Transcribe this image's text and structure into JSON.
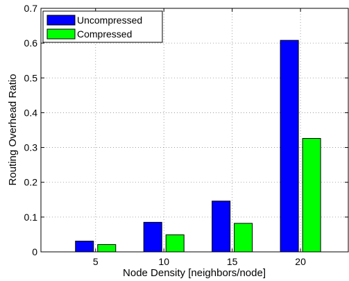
{
  "chart_data": {
    "type": "bar",
    "title": "",
    "xlabel": "Node Density [neighbors/node]",
    "ylabel": "Routing Overhead Ratio",
    "categories": [
      "5",
      "10",
      "15",
      "20"
    ],
    "ylim": [
      0,
      0.7
    ],
    "yticks": [
      0,
      0.1,
      0.2,
      0.3,
      0.4,
      0.5,
      0.6,
      0.7
    ],
    "ytick_labels": [
      "0",
      "0.1",
      "0.2",
      "0.3",
      "0.4",
      "0.5",
      "0.6",
      "0.7"
    ],
    "grid": true,
    "grid_style": "dotted",
    "legend_position": "top-left",
    "series": [
      {
        "name": "Uncompressed",
        "color": "#0000ff",
        "values": [
          0.031,
          0.085,
          0.146,
          0.608
        ]
      },
      {
        "name": "Compressed",
        "color": "#00ff00",
        "values": [
          0.021,
          0.049,
          0.082,
          0.326
        ]
      }
    ]
  }
}
